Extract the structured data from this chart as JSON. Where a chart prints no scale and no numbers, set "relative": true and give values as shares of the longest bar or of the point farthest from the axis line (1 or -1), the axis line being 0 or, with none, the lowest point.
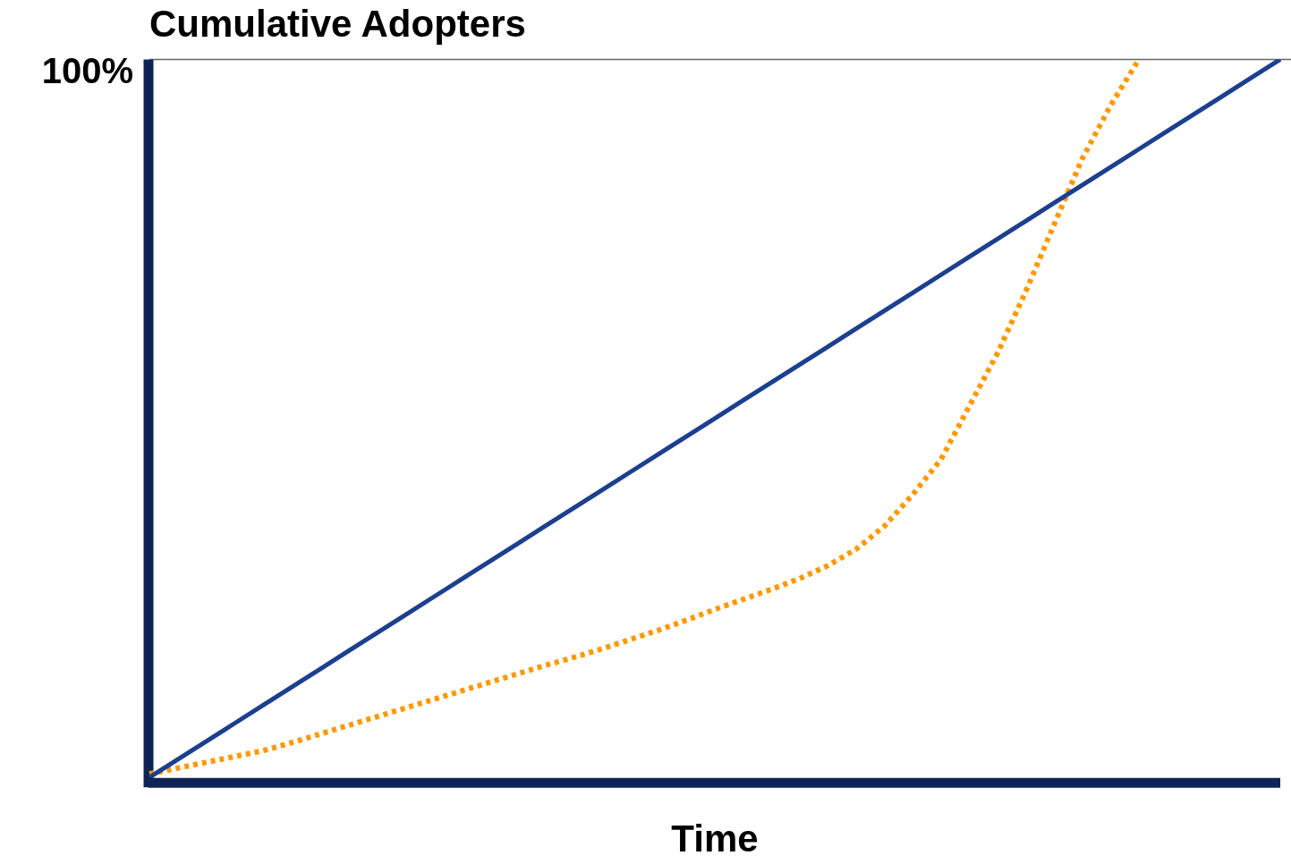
{
  "chart_data": {
    "type": "line",
    "title": "Cumulative Adopters",
    "xlabel": "Time",
    "relative": true,
    "categories": [
      null,
      null,
      null,
      null,
      null,
      null,
      null,
      null,
      null,
      null,
      null,
      null,
      null,
      null,
      null,
      null,
      null,
      null,
      null,
      null,
      null,
      null,
      null,
      null,
      null,
      null,
      null,
      null,
      null,
      null,
      null,
      null,
      null,
      null,
      null,
      null,
      null,
      null,
      null,
      null,
      null
    ],
    "series": [
      {
        "color": "#1c3f8f",
        "line_style": "solid",
        "values": [
          0,
          0.025,
          0.05,
          0.075,
          0.1,
          0.125,
          0.15,
          0.175,
          0.2,
          0.225,
          0.25,
          0.275,
          0.3,
          0.325,
          0.35,
          0.375,
          0.4,
          0.425,
          0.45,
          0.475,
          0.5,
          0.525,
          0.55,
          0.575,
          0.6,
          0.625,
          0.65,
          0.675,
          0.7,
          0.725,
          0.75,
          0.775,
          0.8,
          0.825,
          0.85,
          0.875,
          0.9,
          0.925,
          0.95,
          0.975,
          1
        ]
      },
      {
        "color": "#ff9900",
        "line_style": "dotted",
        "values": [
          0.005,
          0.013,
          0.021,
          0.029,
          0.037,
          0.048,
          0.06,
          0.072,
          0.084,
          0.096,
          0.108,
          0.12,
          0.132,
          0.144,
          0.156,
          0.167,
          0.179,
          0.192,
          0.205,
          0.219,
          0.234,
          0.248,
          0.262,
          0.277,
          0.295,
          0.318,
          0.35,
          0.394,
          0.443,
          0.517,
          0.591,
          0.677,
          0.77,
          0.862,
          0.936,
          1,
          null,
          null,
          null,
          null,
          null
        ]
      }
    ],
    "ref_lines": [
      {
        "axis": "y",
        "value": 1,
        "label": "100%",
        "color": "#666666"
      }
    ],
    "grid": false,
    "legend": false
  }
}
